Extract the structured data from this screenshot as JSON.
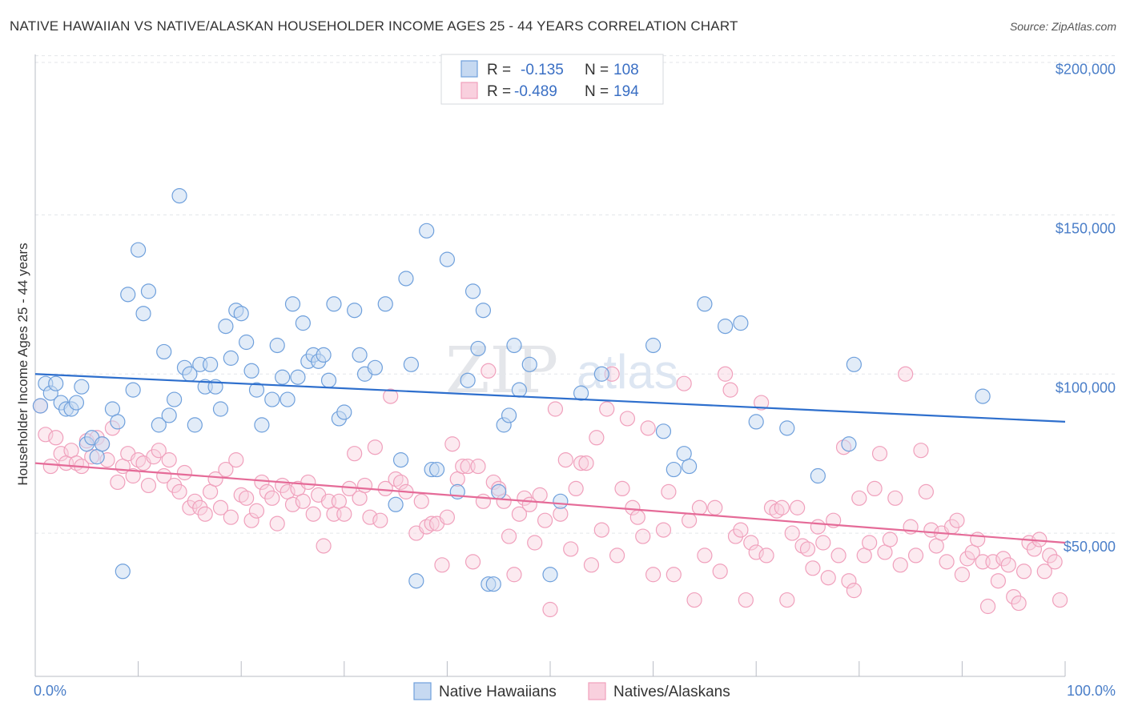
{
  "title": "NATIVE HAWAIIAN VS NATIVE/ALASKAN HOUSEHOLDER INCOME AGES 25 - 44 YEARS CORRELATION CHART",
  "source": "Source: ZipAtlas.com",
  "watermark": {
    "zip": "ZIP",
    "atlas": "atlas"
  },
  "legend": {
    "rows": [
      {
        "r_label": "R =",
        "r_value": "-0.135",
        "n_label": "N =",
        "n_value": "108"
      },
      {
        "r_label": "R =",
        "r_value": "-0.489",
        "n_label": "N =",
        "n_value": "194"
      }
    ]
  },
  "bottom_legend": [
    "Native Hawaiians",
    "Natives/Alaskans"
  ],
  "chart_data": {
    "type": "scatter",
    "xlabel": "",
    "ylabel": "Householder Income Ages 25 - 44 years",
    "x_tick_labels": [
      "0.0%",
      "100.0%"
    ],
    "y_tick_labels": [
      "$50,000",
      "$100,000",
      "$150,000",
      "$200,000"
    ],
    "xlim": [
      0,
      100
    ],
    "ylim": [
      5000,
      215000
    ],
    "y_ticks": [
      50000,
      100000,
      150000,
      200000
    ],
    "grid": true,
    "colors": {
      "blue": "#6fa0dc",
      "blue_line": "#2e6fcd",
      "pink": "#f0a0bc",
      "pink_line": "#e56b98"
    },
    "series": [
      {
        "name": "Native Hawaiians",
        "color": "#6fa0dc",
        "trend": {
          "x": [
            0,
            100
          ],
          "y": [
            100000,
            85000
          ]
        },
        "points": [
          [
            0.5,
            90000
          ],
          [
            1,
            97000
          ],
          [
            1.5,
            94000
          ],
          [
            2,
            97000
          ],
          [
            2.5,
            91000
          ],
          [
            3,
            89000
          ],
          [
            3.5,
            89000
          ],
          [
            4,
            91000
          ],
          [
            4.5,
            96000
          ],
          [
            5,
            78000
          ],
          [
            5.5,
            80000
          ],
          [
            6,
            74000
          ],
          [
            6.5,
            78000
          ],
          [
            7.5,
            89000
          ],
          [
            8,
            85000
          ],
          [
            8.5,
            38000
          ],
          [
            9,
            125000
          ],
          [
            9.5,
            95000
          ],
          [
            10,
            139000
          ],
          [
            10.5,
            119000
          ],
          [
            11,
            126000
          ],
          [
            12,
            84000
          ],
          [
            12.5,
            107000
          ],
          [
            13,
            87000
          ],
          [
            13.5,
            92000
          ],
          [
            14,
            156000
          ],
          [
            14.5,
            102000
          ],
          [
            15,
            100000
          ],
          [
            15.5,
            84000
          ],
          [
            16,
            103000
          ],
          [
            16.5,
            96000
          ],
          [
            17,
            103000
          ],
          [
            17.5,
            96000
          ],
          [
            18,
            89000
          ],
          [
            18.5,
            115000
          ],
          [
            19,
            105000
          ],
          [
            19.5,
            120000
          ],
          [
            20,
            119000
          ],
          [
            20.5,
            110000
          ],
          [
            21,
            101000
          ],
          [
            21.5,
            95000
          ],
          [
            22,
            84000
          ],
          [
            23,
            92000
          ],
          [
            23.5,
            109000
          ],
          [
            24,
            99000
          ],
          [
            24.5,
            92000
          ],
          [
            25,
            122000
          ],
          [
            25.5,
            99000
          ],
          [
            26,
            116000
          ],
          [
            26.5,
            104000
          ],
          [
            27,
            106000
          ],
          [
            27.5,
            104000
          ],
          [
            28,
            106000
          ],
          [
            28.5,
            98000
          ],
          [
            29,
            122000
          ],
          [
            29.5,
            86000
          ],
          [
            30,
            88000
          ],
          [
            31,
            120000
          ],
          [
            31.5,
            106000
          ],
          [
            32,
            100000
          ],
          [
            33,
            102000
          ],
          [
            34,
            122000
          ],
          [
            35,
            59000
          ],
          [
            35.5,
            73000
          ],
          [
            36,
            130000
          ],
          [
            36.5,
            103000
          ],
          [
            37,
            35000
          ],
          [
            38,
            145000
          ],
          [
            38.5,
            70000
          ],
          [
            39,
            70000
          ],
          [
            40,
            136000
          ],
          [
            41,
            63000
          ],
          [
            42,
            98000
          ],
          [
            42.5,
            126000
          ],
          [
            43,
            108000
          ],
          [
            43.5,
            120000
          ],
          [
            44,
            34000
          ],
          [
            44.5,
            34000
          ],
          [
            45,
            63000
          ],
          [
            45.5,
            84000
          ],
          [
            46,
            87000
          ],
          [
            46.5,
            109000
          ],
          [
            47,
            95000
          ],
          [
            48,
            103000
          ],
          [
            50,
            37000
          ],
          [
            51,
            60000
          ],
          [
            53,
            94000
          ],
          [
            55,
            100000
          ],
          [
            60,
            109000
          ],
          [
            61,
            82000
          ],
          [
            62,
            70000
          ],
          [
            63,
            75000
          ],
          [
            63.5,
            71000
          ],
          [
            65,
            122000
          ],
          [
            67,
            115000
          ],
          [
            68.5,
            116000
          ],
          [
            70,
            85000
          ],
          [
            73,
            83000
          ],
          [
            76,
            68000
          ],
          [
            79,
            78000
          ],
          [
            79.5,
            103000
          ],
          [
            92,
            93000
          ]
        ]
      },
      {
        "name": "Natives/Alaskans",
        "color": "#f0a0bc",
        "trend": {
          "x": [
            0,
            100
          ],
          "y": [
            72000,
            47000
          ]
        },
        "points": [
          [
            0.5,
            90000
          ],
          [
            1,
            81000
          ],
          [
            1.5,
            71000
          ],
          [
            2,
            80000
          ],
          [
            2.5,
            75000
          ],
          [
            3,
            72000
          ],
          [
            3.5,
            76000
          ],
          [
            4,
            72000
          ],
          [
            4.5,
            71000
          ],
          [
            5,
            79000
          ],
          [
            5.5,
            74000
          ],
          [
            6,
            80000
          ],
          [
            6.5,
            78000
          ],
          [
            7,
            73000
          ],
          [
            7.5,
            83000
          ],
          [
            8,
            66000
          ],
          [
            8.5,
            71000
          ],
          [
            9,
            75000
          ],
          [
            9.5,
            68000
          ],
          [
            10,
            73000
          ],
          [
            10.5,
            72000
          ],
          [
            11,
            65000
          ],
          [
            11.5,
            74000
          ],
          [
            12,
            76000
          ],
          [
            12.5,
            68000
          ],
          [
            13,
            73000
          ],
          [
            13.5,
            65000
          ],
          [
            14,
            63000
          ],
          [
            14.5,
            69000
          ],
          [
            15,
            58000
          ],
          [
            15.5,
            60000
          ],
          [
            16,
            58000
          ],
          [
            16.5,
            56000
          ],
          [
            17,
            63000
          ],
          [
            17.5,
            67000
          ],
          [
            18,
            58000
          ],
          [
            18.5,
            70000
          ],
          [
            19,
            55000
          ],
          [
            19.5,
            73000
          ],
          [
            20,
            62000
          ],
          [
            20.5,
            61000
          ],
          [
            21,
            54000
          ],
          [
            21.5,
            57000
          ],
          [
            22,
            66000
          ],
          [
            22.5,
            63000
          ],
          [
            23,
            61000
          ],
          [
            23.5,
            53000
          ],
          [
            24,
            65000
          ],
          [
            24.5,
            63000
          ],
          [
            25,
            59000
          ],
          [
            25.5,
            64000
          ],
          [
            26,
            60000
          ],
          [
            26.5,
            66000
          ],
          [
            27,
            56000
          ],
          [
            27.5,
            62000
          ],
          [
            28,
            46000
          ],
          [
            28.5,
            60000
          ],
          [
            29,
            56000
          ],
          [
            29.5,
            60000
          ],
          [
            30,
            56000
          ],
          [
            30.5,
            64000
          ],
          [
            31,
            75000
          ],
          [
            31.5,
            61000
          ],
          [
            32,
            65000
          ],
          [
            32.5,
            55000
          ],
          [
            33,
            77000
          ],
          [
            33.5,
            54000
          ],
          [
            34,
            64000
          ],
          [
            34.5,
            93000
          ],
          [
            35,
            67000
          ],
          [
            35.5,
            66000
          ],
          [
            36,
            63000
          ],
          [
            37,
            50000
          ],
          [
            37.5,
            60000
          ],
          [
            38,
            52000
          ],
          [
            38.5,
            53000
          ],
          [
            39,
            53000
          ],
          [
            39.5,
            40000
          ],
          [
            40,
            55000
          ],
          [
            40.5,
            78000
          ],
          [
            41,
            67000
          ],
          [
            41.5,
            71000
          ],
          [
            42,
            71000
          ],
          [
            42.5,
            41000
          ],
          [
            43,
            71000
          ],
          [
            43.5,
            60000
          ],
          [
            44,
            101000
          ],
          [
            44.5,
            66000
          ],
          [
            45,
            64000
          ],
          [
            45.5,
            60000
          ],
          [
            46,
            49000
          ],
          [
            46.5,
            37000
          ],
          [
            47,
            56000
          ],
          [
            47.5,
            61000
          ],
          [
            48,
            59000
          ],
          [
            48.5,
            47000
          ],
          [
            49,
            62000
          ],
          [
            49.5,
            54000
          ],
          [
            50,
            26000
          ],
          [
            50.5,
            89000
          ],
          [
            51,
            56000
          ],
          [
            51.5,
            73000
          ],
          [
            52,
            45000
          ],
          [
            52.5,
            64000
          ],
          [
            53,
            72000
          ],
          [
            53.5,
            72000
          ],
          [
            54,
            40000
          ],
          [
            54.5,
            80000
          ],
          [
            55,
            51000
          ],
          [
            55.5,
            89000
          ],
          [
            56,
            100000
          ],
          [
            56.5,
            43000
          ],
          [
            57,
            64000
          ],
          [
            57.5,
            86000
          ],
          [
            58,
            58000
          ],
          [
            58.5,
            55000
          ],
          [
            59,
            49000
          ],
          [
            59.5,
            83000
          ],
          [
            60,
            37000
          ],
          [
            61,
            51000
          ],
          [
            61.5,
            63000
          ],
          [
            62,
            37000
          ],
          [
            63,
            97000
          ],
          [
            63.5,
            54000
          ],
          [
            64,
            29000
          ],
          [
            64.5,
            58000
          ],
          [
            65,
            43000
          ],
          [
            66,
            58000
          ],
          [
            66.5,
            38000
          ],
          [
            67,
            100000
          ],
          [
            67.5,
            95000
          ],
          [
            68,
            49000
          ],
          [
            68.5,
            51000
          ],
          [
            69,
            29000
          ],
          [
            69.5,
            47000
          ],
          [
            70,
            44000
          ],
          [
            70.5,
            91000
          ],
          [
            71,
            43000
          ],
          [
            71.5,
            58000
          ],
          [
            72,
            57000
          ],
          [
            72.5,
            58000
          ],
          [
            73,
            29000
          ],
          [
            73.5,
            50000
          ],
          [
            74,
            58000
          ],
          [
            74.5,
            46000
          ],
          [
            75,
            45000
          ],
          [
            75.5,
            39000
          ],
          [
            76,
            52000
          ],
          [
            76.5,
            47000
          ],
          [
            77,
            36000
          ],
          [
            77.5,
            54000
          ],
          [
            78,
            43000
          ],
          [
            78.5,
            77000
          ],
          [
            79,
            35000
          ],
          [
            79.5,
            32000
          ],
          [
            80,
            61000
          ],
          [
            80.5,
            43000
          ],
          [
            81,
            47000
          ],
          [
            81.5,
            64000
          ],
          [
            82,
            75000
          ],
          [
            82.5,
            44000
          ],
          [
            83,
            48000
          ],
          [
            83.5,
            61000
          ],
          [
            84,
            40000
          ],
          [
            84.5,
            100000
          ],
          [
            85,
            52000
          ],
          [
            85.5,
            43000
          ],
          [
            86,
            76000
          ],
          [
            86.5,
            63000
          ],
          [
            87,
            51000
          ],
          [
            87.5,
            46000
          ],
          [
            88,
            50000
          ],
          [
            88.5,
            41000
          ],
          [
            89,
            52000
          ],
          [
            89.5,
            54000
          ],
          [
            90,
            37000
          ],
          [
            90.5,
            42000
          ],
          [
            91,
            44000
          ],
          [
            91.5,
            48000
          ],
          [
            92,
            41000
          ],
          [
            92.5,
            27000
          ],
          [
            93,
            41000
          ],
          [
            93.5,
            35000
          ],
          [
            94,
            42000
          ],
          [
            94.5,
            40000
          ],
          [
            95,
            30000
          ],
          [
            95.5,
            28000
          ],
          [
            96,
            38000
          ],
          [
            96.5,
            47000
          ],
          [
            97,
            45000
          ],
          [
            97.5,
            48000
          ],
          [
            98,
            38000
          ],
          [
            98.5,
            43000
          ],
          [
            99,
            41000
          ],
          [
            99.5,
            29000
          ]
        ]
      }
    ]
  }
}
